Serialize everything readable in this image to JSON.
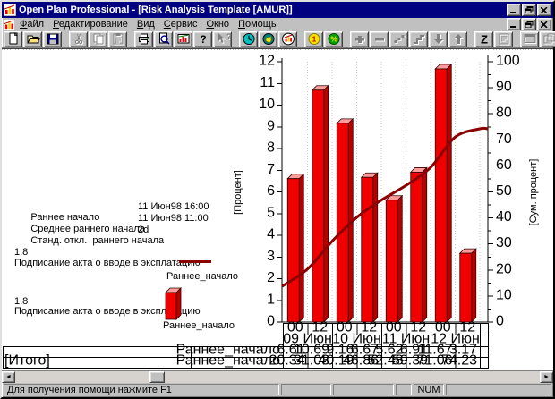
{
  "window": {
    "title": "Open Plan Professional - [Risk Analysis Template [AMUR]]",
    "menu": [
      "Файл",
      "Редактирование",
      "Вид",
      "Сервис",
      "Окно",
      "Помощь"
    ],
    "controls": [
      "minimize",
      "restore",
      "close"
    ],
    "colors": {
      "titlebar": "#000080",
      "chrome": "#c0c0c0"
    }
  },
  "toolbar": {
    "groups": [
      {
        "buttons": [
          {
            "name": "new-document",
            "icon": "new",
            "enabled": true
          },
          {
            "name": "open",
            "icon": "open",
            "enabled": true
          },
          {
            "name": "save",
            "icon": "save",
            "enabled": true
          }
        ]
      },
      {
        "buttons": [
          {
            "name": "cut",
            "icon": "cut",
            "enabled": false
          },
          {
            "name": "copy",
            "icon": "copy",
            "enabled": false
          },
          {
            "name": "paste",
            "icon": "paste",
            "enabled": false
          }
        ]
      },
      {
        "buttons": [
          {
            "name": "print",
            "icon": "print",
            "enabled": true
          },
          {
            "name": "print-preview",
            "icon": "preview",
            "enabled": true
          },
          {
            "name": "edit-views",
            "icon": "views",
            "enabled": true
          },
          {
            "name": "help",
            "icon": "help",
            "enabled": true
          },
          {
            "name": "context-help",
            "icon": "ctxhelp",
            "enabled": false
          }
        ]
      },
      {
        "buttons": [
          {
            "name": "time-analysis",
            "icon": "clock",
            "enabled": true
          },
          {
            "name": "risk-analysis",
            "icon": "duck",
            "enabled": true
          },
          {
            "name": "histogram-view",
            "icon": "histogram",
            "enabled": true
          }
        ]
      },
      {
        "buttons": [
          {
            "name": "cost",
            "icon": "coin",
            "enabled": true
          },
          {
            "name": "percent-complete",
            "icon": "percent",
            "enabled": true
          }
        ]
      },
      {
        "buttons": [
          {
            "name": "add-activity",
            "icon": "plus",
            "enabled": false
          },
          {
            "name": "delete-activity",
            "icon": "minus",
            "enabled": false
          },
          {
            "name": "link-activities",
            "icon": "dots",
            "enabled": false
          },
          {
            "name": "unlink-activities",
            "icon": "steps",
            "enabled": false
          },
          {
            "name": "move-down",
            "icon": "down",
            "enabled": false
          },
          {
            "name": "move-up",
            "icon": "up",
            "enabled": false
          }
        ]
      },
      {
        "buttons": [
          {
            "name": "sort",
            "icon": "zed",
            "enabled": true
          },
          {
            "name": "notes",
            "icon": "notes",
            "enabled": false
          }
        ]
      },
      {
        "buttons": [
          {
            "name": "tile-windows",
            "icon": "win1",
            "enabled": false
          },
          {
            "name": "cascade-windows",
            "icon": "win2",
            "enabled": false
          }
        ]
      }
    ]
  },
  "info_panel": {
    "rows": [
      {
        "label": "Раннее начало",
        "value": "11 Июн98 16:00"
      },
      {
        "label": "Среднее раннего начала",
        "value": "11 Июн98 11:00"
      },
      {
        "label": "Станд. откл.  раннего начала",
        "value": "2d"
      }
    ]
  },
  "legend": {
    "curve": {
      "id": "1.8",
      "desc": "Подписание акта о вводе в эксплатацию",
      "series": "Раннее_начало",
      "color": "#8b0000"
    },
    "bars": {
      "id": "1.8",
      "desc": "Подписание акта о вводе в эксплатацию",
      "series": "Раннее_начало",
      "color": "#ff0000"
    }
  },
  "chart_data": {
    "type": "bar",
    "subtype": "3d-histogram-with-cumulative-line",
    "left_axis": {
      "label": "[Процент]",
      "min": 0,
      "max": 12,
      "tick_step": 1
    },
    "right_axis": {
      "label": "[Сум. процент]",
      "min": 0,
      "max": 100,
      "tick_step": 10,
      "minor_step": 5
    },
    "x_hours": [
      "00",
      "12",
      "00",
      "12",
      "00",
      "12",
      "00",
      "12"
    ],
    "x_dates": [
      "09 Июн",
      "10 Июн",
      "11 Июн",
      "12 Июн"
    ],
    "grid": "vertical-dotted",
    "series": [
      {
        "name": "Раннее_начало",
        "type": "bar",
        "axis": "left",
        "color": "#ff0000",
        "values": [
          6.61,
          10.69,
          9.16,
          6.67,
          5.62,
          6.91,
          11.67,
          3.17
        ]
      },
      {
        "name": "Раннее_начало",
        "type": "line",
        "axis": "right",
        "color": "#8b0000",
        "start_value": 13.73,
        "values": [
          20.34,
          31.03,
          40.19,
          46.86,
          52.48,
          59.39,
          71.06,
          74.23
        ]
      }
    ],
    "table": {
      "rows": [
        {
          "left_label": "",
          "series_label": "Раннее_начало",
          "values": [
            "6.61",
            "10.69",
            "9.16",
            "6.67",
            "5.62",
            "6.91",
            "11.67",
            "3.17"
          ]
        },
        {
          "left_label": "[Итого]",
          "series_label": "Раннее_начало",
          "values": [
            "20.34",
            "31.03",
            "40.19",
            "46.86",
            "52.48",
            "59.39",
            "71.06",
            "74.23"
          ]
        }
      ]
    },
    "colors": {
      "bar_front": "#f00000",
      "bar_top": "#ff9c9c",
      "bar_side": "#b80000",
      "curve": "#8b0000",
      "grid": "#c8c8c8"
    }
  },
  "statusbar": {
    "help_text": "Для получения помощи нажмите F1",
    "num_indicator": "NUM"
  }
}
